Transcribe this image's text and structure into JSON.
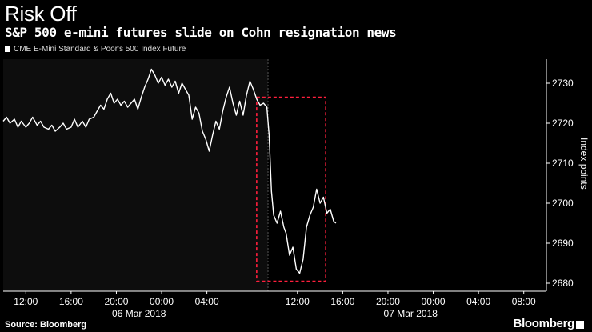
{
  "title": "Risk Off",
  "subtitle": "S&P 500 e-mini futures slide on Cohn resignation news",
  "legend": "CME E-Mini Standard & Poor's 500 Index Future",
  "source": "Source: Bloomberg",
  "logo": "Bloomberg",
  "colors": {
    "background": "#000000",
    "line": "#ffffff",
    "highlight_box": "#ff1f3d",
    "plot_area": "#0d0d0d"
  },
  "chart_data": {
    "type": "line",
    "title": "Risk Off",
    "subtitle": "S&P 500 e-mini futures slide on Cohn resignation news",
    "ylabel": "Index points",
    "ylim": [
      2678,
      2736
    ],
    "y_ticks": [
      2680,
      2690,
      2700,
      2710,
      2720,
      2730
    ],
    "x_range_hours": [
      10,
      58
    ],
    "x_ticks": [
      {
        "t": 12,
        "label": "12:00"
      },
      {
        "t": 16,
        "label": "16:00"
      },
      {
        "t": 20,
        "label": "20:00"
      },
      {
        "t": 24,
        "label": "00:00"
      },
      {
        "t": 28,
        "label": "04:00"
      },
      {
        "t": 36,
        "label": "12:00"
      },
      {
        "t": 40,
        "label": "16:00"
      },
      {
        "t": 44,
        "label": "20:00"
      },
      {
        "t": 48,
        "label": "00:00"
      },
      {
        "t": 52,
        "label": "04:00"
      },
      {
        "t": 56,
        "label": "08:00"
      }
    ],
    "date_labels": [
      {
        "t": 22,
        "label": "06 Mar 2018"
      },
      {
        "t": 46,
        "label": "07 Mar 2018"
      }
    ],
    "shaded_until": 33.4,
    "highlight_box": {
      "x0": 32.4,
      "x1": 38.5,
      "y0": 2680.5,
      "y1": 2726.5
    },
    "grid": false,
    "legend_position": "top-left",
    "series": [
      {
        "name": "CME E-Mini Standard & Poor's 500 Index Future",
        "points": [
          [
            10.0,
            2720.5
          ],
          [
            10.3,
            2721.5
          ],
          [
            10.6,
            2720
          ],
          [
            11.0,
            2721
          ],
          [
            11.3,
            2719
          ],
          [
            11.6,
            2720.5
          ],
          [
            12.0,
            2719
          ],
          [
            12.3,
            2720
          ],
          [
            12.6,
            2721.5
          ],
          [
            13.0,
            2719.5
          ],
          [
            13.3,
            2720.5
          ],
          [
            13.6,
            2719
          ],
          [
            14.0,
            2718.5
          ],
          [
            14.3,
            2719.5
          ],
          [
            14.6,
            2718
          ],
          [
            15.0,
            2719
          ],
          [
            15.3,
            2720
          ],
          [
            15.6,
            2718.5
          ],
          [
            16.0,
            2719
          ],
          [
            16.3,
            2721
          ],
          [
            16.6,
            2719
          ],
          [
            17.0,
            2720.5
          ],
          [
            17.3,
            2719
          ],
          [
            17.6,
            2721
          ],
          [
            18.0,
            2721.5
          ],
          [
            18.3,
            2723
          ],
          [
            18.6,
            2724.5
          ],
          [
            18.9,
            2723.5
          ],
          [
            19.2,
            2726
          ],
          [
            19.5,
            2727.5
          ],
          [
            19.8,
            2725
          ],
          [
            20.1,
            2726
          ],
          [
            20.4,
            2724.5
          ],
          [
            20.7,
            2725.5
          ],
          [
            21.0,
            2724
          ],
          [
            21.3,
            2725
          ],
          [
            21.6,
            2726
          ],
          [
            21.9,
            2723.5
          ],
          [
            22.2,
            2726.5
          ],
          [
            22.5,
            2729
          ],
          [
            22.8,
            2731
          ],
          [
            23.1,
            2733.5
          ],
          [
            23.4,
            2732
          ],
          [
            23.7,
            2730
          ],
          [
            24.0,
            2731.5
          ],
          [
            24.3,
            2729.5
          ],
          [
            24.6,
            2731
          ],
          [
            24.9,
            2729
          ],
          [
            25.2,
            2730.5
          ],
          [
            25.5,
            2727.5
          ],
          [
            25.8,
            2730
          ],
          [
            26.1,
            2728.5
          ],
          [
            26.4,
            2727
          ],
          [
            26.7,
            2721
          ],
          [
            27.0,
            2724
          ],
          [
            27.3,
            2722.5
          ],
          [
            27.6,
            2718
          ],
          [
            27.9,
            2716
          ],
          [
            28.2,
            2713
          ],
          [
            28.5,
            2717
          ],
          [
            28.8,
            2720.5
          ],
          [
            29.1,
            2718.5
          ],
          [
            29.4,
            2723
          ],
          [
            29.7,
            2726.5
          ],
          [
            30.0,
            2729
          ],
          [
            30.3,
            2725
          ],
          [
            30.6,
            2722
          ],
          [
            30.9,
            2725.5
          ],
          [
            31.2,
            2722
          ],
          [
            31.5,
            2727
          ],
          [
            31.8,
            2730.5
          ],
          [
            32.1,
            2728.5
          ],
          [
            32.4,
            2726
          ],
          [
            32.7,
            2724.5
          ],
          [
            33.0,
            2725
          ],
          [
            33.3,
            2724
          ],
          [
            33.5,
            2717
          ],
          [
            33.7,
            2703
          ],
          [
            33.9,
            2697
          ],
          [
            34.2,
            2695
          ],
          [
            34.5,
            2698
          ],
          [
            34.8,
            2694
          ],
          [
            35.0,
            2692.5
          ],
          [
            35.3,
            2687
          ],
          [
            35.6,
            2689
          ],
          [
            35.9,
            2683.5
          ],
          [
            36.2,
            2682.5
          ],
          [
            36.5,
            2686
          ],
          [
            36.8,
            2694
          ],
          [
            37.1,
            2697
          ],
          [
            37.4,
            2699
          ],
          [
            37.7,
            2703.5
          ],
          [
            38.0,
            2700
          ],
          [
            38.3,
            2701.5
          ],
          [
            38.6,
            2697.5
          ],
          [
            38.9,
            2698.5
          ],
          [
            39.2,
            2695.5
          ],
          [
            39.4,
            2695
          ]
        ]
      }
    ]
  }
}
